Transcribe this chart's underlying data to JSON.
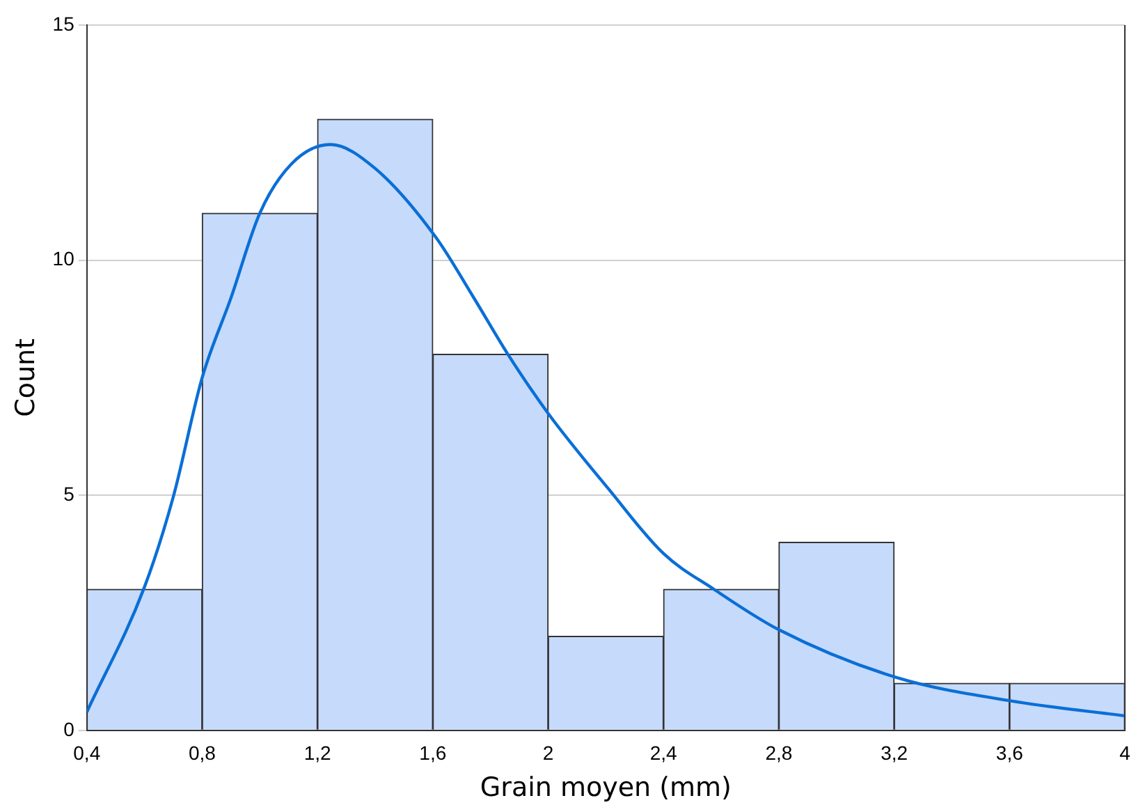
{
  "chart_data": {
    "type": "histogram",
    "xlabel": "Grain moyen (mm)",
    "ylabel": "Count",
    "xlim": [
      0.4,
      4
    ],
    "xticks": [
      {
        "value": 0.4,
        "label": "0,4"
      },
      {
        "value": 0.8,
        "label": "0,8"
      },
      {
        "value": 1.2,
        "label": "1,2"
      },
      {
        "value": 1.6,
        "label": "1,6"
      },
      2,
      {
        "value": 2.4,
        "label": "2,4"
      },
      {
        "value": 2.8,
        "label": "2,8"
      },
      {
        "value": 3.2,
        "label": "3,2"
      },
      {
        "value": 3.6,
        "label": "3,6"
      },
      4
    ],
    "ylim": [
      0,
      15
    ],
    "yticks": [
      0,
      5,
      10,
      15
    ],
    "grid": "y",
    "legend": false,
    "series": [
      {
        "color": "#c6dafc",
        "bins": [
          0.4,
          0.8,
          1.2,
          1.6,
          2,
          2.4,
          2.8,
          3.2,
          3.6,
          4
        ],
        "values": [
          3,
          11,
          13,
          8,
          2,
          3,
          4,
          1,
          1
        ]
      },
      {
        "type": "line",
        "color": "#0a6fd6",
        "marker": "none",
        "x": [
          0.4,
          0.6,
          0.7,
          0.8,
          0.9,
          1.0,
          1.11,
          1.245,
          1.4,
          1.61,
          1.74,
          1.86,
          2.0,
          2.21,
          2.4,
          2.575,
          2.8,
          3.21,
          3.61,
          4.0
        ],
        "values": [
          0.39,
          3.05,
          4.97,
          7.5,
          9.2,
          11.0,
          12.05,
          12.46,
          11.95,
          10.49,
          9.22,
          8.0,
          6.74,
          5.13,
          3.76,
          3.0,
          2.14,
          1.12,
          0.62,
          0.31
        ]
      }
    ]
  }
}
